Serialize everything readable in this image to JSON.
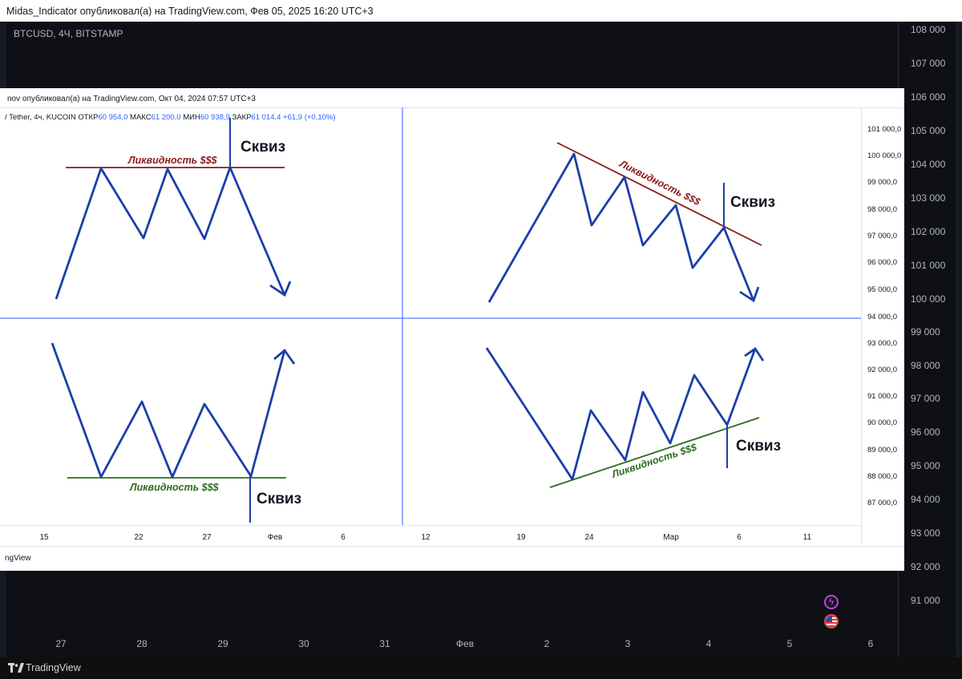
{
  "header": {
    "text": "Midas_Indicator опубликовал(а) на TradingView.com, Фев 05, 2025 16:20 UTC+3"
  },
  "outer_chart": {
    "symbol": "BTCUSD, 4Ч, BITSTAMP",
    "price_labels": [
      "108 000",
      "107 000",
      "106 000",
      "105 000",
      "104 000",
      "103 000",
      "102 000",
      "101 000",
      "100 000",
      "99 000",
      "98 000",
      "97 000",
      "96 000",
      "95 000",
      "94 000",
      "93 000",
      "92 000",
      "91 000"
    ],
    "date_labels": [
      "27",
      "28",
      "29",
      "30",
      "31",
      "Фев",
      "2",
      "3",
      "4",
      "5",
      "6"
    ]
  },
  "footer": {
    "brand": "TradingView"
  },
  "inner_snapshot": {
    "header": "nov опубликовал(а) на TradingView.com, Окт 04, 2024 07:57 UTC+3",
    "symbol_parts": [
      "/ Tether, 4ч, KUCOIN  ОТКР",
      "60 954,0",
      "  МАКС",
      "61 200,0",
      "  МИН",
      "60 938,9",
      "  ЗАКР",
      "61 014,4",
      "  +61,9 (+0,10%)"
    ],
    "price_labels": [
      "101 000,0",
      "100 000,0",
      "99 000,0",
      "98 000,0",
      "97 000,0",
      "96 000,0",
      "95 000,0",
      "94 000,0",
      "93 000,0",
      "92 000,0",
      "91 000,0",
      "90 000,0",
      "89 000,0",
      "88 000,0",
      "87 000,0"
    ],
    "date_labels": [
      "15",
      "22",
      "27",
      "Фев",
      "6",
      "12",
      "19",
      "24",
      "Мар",
      "6",
      "11"
    ],
    "brand": "ngView"
  },
  "annotations": {
    "liquidity_label": "Ликвидность $$$",
    "squeeze_label": "Сквиз"
  },
  "colors": {
    "line_blue": "#1c3fa8",
    "liquidity_red": "#8b1a1a",
    "liquidity_green": "#2d6b1f",
    "crosshair_blue": "#2962ff"
  }
}
